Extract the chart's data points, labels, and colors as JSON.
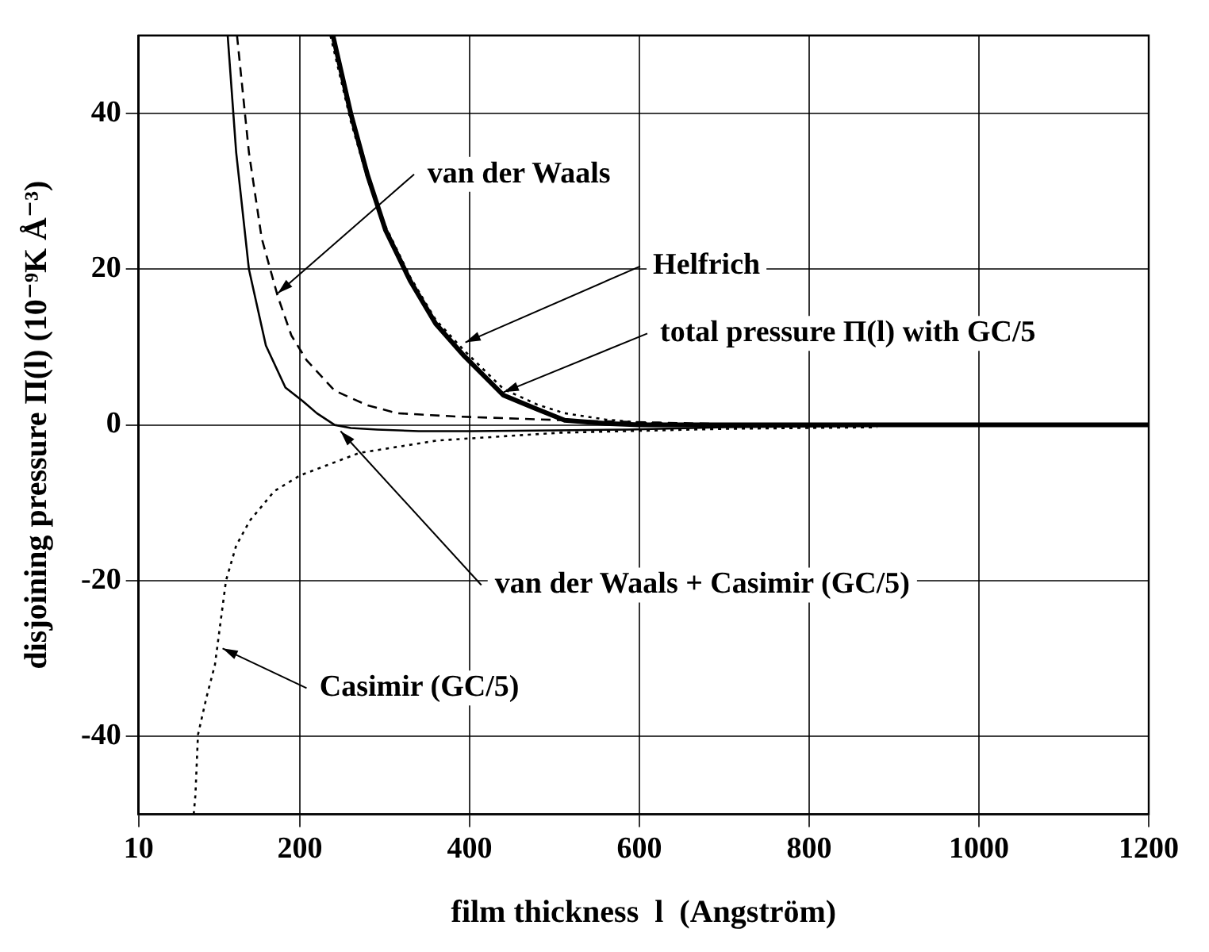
{
  "chart_data": {
    "type": "line",
    "xlabel": "film thickness  l  (Angström)",
    "ylabel": "disjoining pressure Π(l) (10⁻⁹K Å⁻³)",
    "xlim": [
      10,
      1200
    ],
    "xticks": [
      10,
      200,
      400,
      600,
      800,
      1000,
      1200
    ],
    "ylim": [
      -50,
      50
    ],
    "yticks": [
      -40,
      -20,
      0,
      20,
      40
    ],
    "grid": true,
    "legend": false,
    "marker": "none",
    "series": [
      {
        "color": "#000000",
        "line_style": "solid",
        "x": [
          239,
          260,
          280,
          301,
          330,
          360,
          394,
          440,
          480,
          512,
          560,
          600,
          700,
          800,
          1000,
          1200
        ],
        "values": [
          50,
          40,
          32,
          25,
          18.5,
          13,
          8.8,
          3.8,
          2.0,
          0.6,
          0.2,
          0,
          0,
          0,
          0,
          0
        ]
      },
      {
        "color": "#000000",
        "line_style": "dotted",
        "x": [
          236,
          260,
          280,
          301,
          330,
          360,
          394,
          440,
          480,
          512,
          560,
          600,
          650,
          713
        ],
        "values": [
          50,
          39,
          31.5,
          25.5,
          19,
          13.5,
          9.5,
          4.6,
          2.6,
          1.5,
          0.7,
          0.3,
          0.1,
          0
        ]
      },
      {
        "color": "#000000",
        "line_style": "dashed",
        "x": [
          126,
          140,
          155,
          174,
          190,
          208,
          241,
          280,
          315,
          380,
          457,
          540,
          623,
          700,
          800,
          880
        ],
        "values": [
          50,
          35,
          24,
          16.5,
          11.5,
          8.3,
          4.4,
          2.5,
          1.5,
          1.1,
          0.8,
          0.5,
          0.3,
          0.1,
          0,
          0
        ]
      },
      {
        "color": "#000000",
        "line_style": "solid",
        "x": [
          115,
          125,
          140,
          160,
          183,
          203,
          220,
          241,
          260,
          291,
          340,
          402,
          500,
          586,
          700,
          880
        ],
        "values": [
          50,
          35,
          20,
          10.2,
          4.8,
          3.1,
          1.5,
          0,
          -0.4,
          -0.6,
          -0.8,
          -0.8,
          -0.7,
          -0.6,
          -0.3,
          -0.1
        ]
      },
      {
        "color": "#000000",
        "line_style": "dotted",
        "x": [
          75,
          77,
          80,
          90,
          100,
          113,
          125,
          141,
          170,
          200,
          270,
          362,
          507,
          700,
          880
        ],
        "values": [
          -50,
          -47.5,
          -39.8,
          -35,
          -30.8,
          -20,
          -15.5,
          -12.3,
          -8.5,
          -6.5,
          -3.6,
          -2,
          -1,
          -0.5,
          -0.3
        ]
      }
    ],
    "annotations": [
      {
        "text": "van der Waals",
        "x": 174,
        "y": 16.9
      },
      {
        "text": "Helfrich",
        "x": 395,
        "y": 10.6
      },
      {
        "text": "total pressure Π(l) with GC/5",
        "x": 440,
        "y": 4.2
      },
      {
        "text": "van der Waals + Casimir (GC/5)",
        "x": 248,
        "y": -0.8
      },
      {
        "text": "Casimir (GC/5)",
        "x": 109,
        "y": -28.7
      }
    ]
  }
}
